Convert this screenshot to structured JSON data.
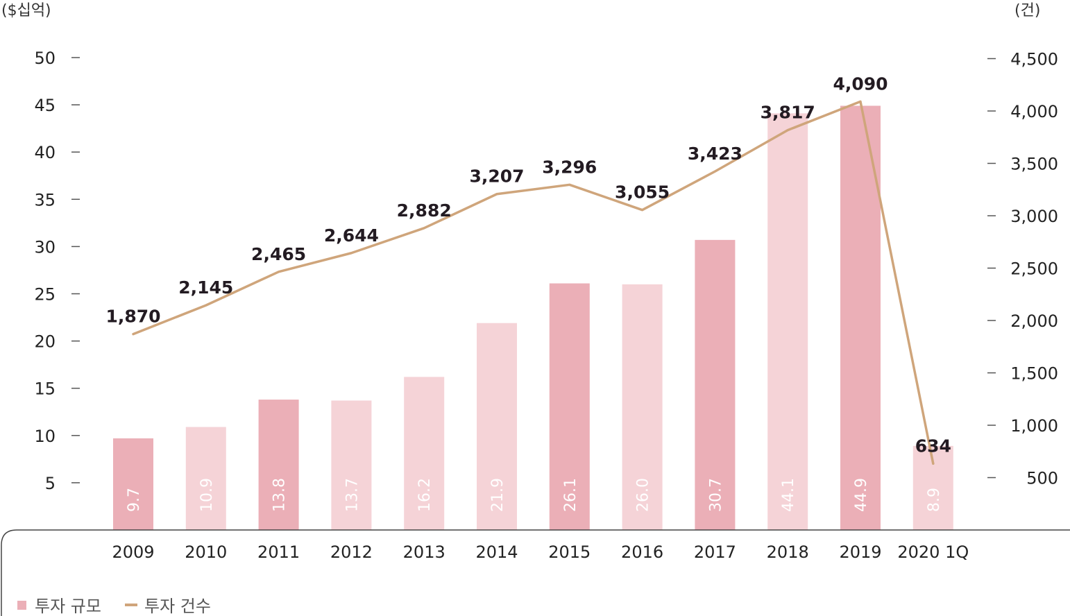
{
  "chart_data": {
    "type": "bar",
    "categories": [
      "2009",
      "2010",
      "2011",
      "2012",
      "2013",
      "2014",
      "2015",
      "2016",
      "2017",
      "2018",
      "2019",
      "2020 1Q"
    ],
    "series": [
      {
        "name": "투자 규모",
        "type": "bar",
        "axis": "left",
        "values": [
          9.7,
          10.9,
          13.8,
          13.7,
          16.2,
          21.9,
          26.1,
          26.0,
          30.7,
          44.1,
          44.9,
          8.9
        ],
        "value_labels": [
          "9.7",
          "10.9",
          "13.8",
          "13.7",
          "16.2",
          "21.9",
          "26.1",
          "26.0",
          "30.7",
          "44.1",
          "44.9",
          "8.9"
        ],
        "colors": [
          "#ebafb7",
          "#f5d3d7",
          "#ebafb7",
          "#f5d3d7",
          "#f5d3d7",
          "#f5d3d7",
          "#ebafb7",
          "#f5d3d7",
          "#ebafb7",
          "#f5d3d7",
          "#ebafb7",
          "#f5d3d7"
        ]
      },
      {
        "name": "투자 건수",
        "type": "line",
        "axis": "right",
        "color": "#cfa57b",
        "values": [
          1870,
          2145,
          2465,
          2644,
          2882,
          3207,
          3296,
          3055,
          3423,
          3817,
          4090,
          634
        ],
        "value_labels": [
          "1,870",
          "2,145",
          "2,465",
          "2,644",
          "2,882",
          "3,207",
          "3,296",
          "3,055",
          "3,423",
          "3,817",
          "4,090",
          "634"
        ]
      }
    ],
    "left_axis": {
      "unit": "($십억)",
      "ticks": [
        "5",
        "10",
        "15",
        "20",
        "25",
        "30",
        "35",
        "40",
        "45",
        "50"
      ],
      "tick_values": [
        5,
        10,
        15,
        20,
        25,
        30,
        35,
        40,
        45,
        50
      ],
      "ylim": [
        0,
        50
      ]
    },
    "right_axis": {
      "unit": "(건)",
      "ticks": [
        "500",
        "1,000",
        "1,500",
        "2,000",
        "2,500",
        "3,000",
        "3,500",
        "4,000",
        "4,500"
      ],
      "tick_values": [
        500,
        1000,
        1500,
        2000,
        2500,
        3000,
        3500,
        4000,
        4500
      ],
      "ylim": [
        0,
        4500
      ]
    },
    "legend": {
      "position": "bottom-left",
      "items": [
        {
          "label": "투자 규모",
          "marker": "square",
          "color": "#ebafb7"
        },
        {
          "label": "투자 건수",
          "marker": "line",
          "color": "#cfa57b"
        }
      ]
    },
    "grid": false,
    "title": "",
    "xlabel": ""
  }
}
